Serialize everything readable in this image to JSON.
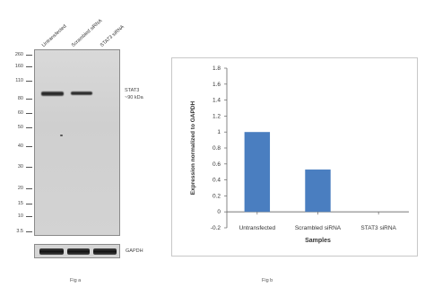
{
  "blot": {
    "lanes": [
      "Untransfected",
      "Scrambled siRNA",
      "STAT3 siRNA"
    ],
    "mw_markers": [
      "260",
      "160",
      "110",
      "80",
      "60",
      "50",
      "40",
      "30",
      "20",
      "15",
      "10",
      "3.5"
    ],
    "target_label_line1": "STAT3",
    "target_label_line2": "~90 kDa",
    "loading_label": "GAPDH",
    "caption": "Fig a"
  },
  "chart_caption": "Fig b",
  "chart_data": {
    "type": "bar",
    "categories": [
      "Untransfected",
      "Scrambled siRNA",
      "STAT3 siRNA"
    ],
    "values": [
      1.0,
      0.53,
      0.0
    ],
    "title": "",
    "xlabel": "Samples",
    "ylabel": "Expression normalized to GAPDH",
    "ylim": [
      -0.2,
      1.8
    ],
    "yticks": [
      "-0.2",
      "0",
      "0.2",
      "0.4",
      "0.6",
      "0.8",
      "1",
      "1.2",
      "1.4",
      "1.6",
      "1.8"
    ],
    "bar_color": "#4a7ec0",
    "grid": false,
    "legend": "none"
  }
}
